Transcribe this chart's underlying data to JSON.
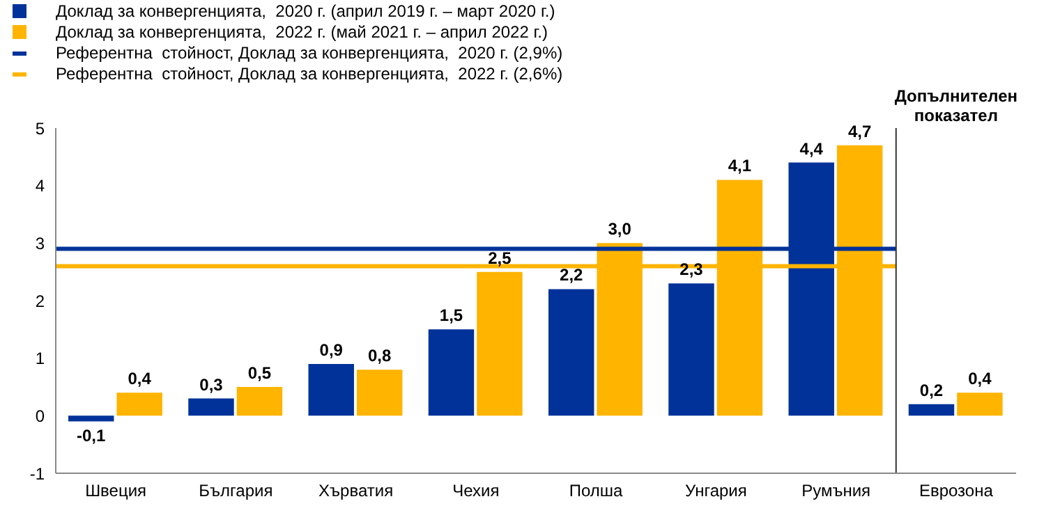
{
  "chart_data": {
    "type": "bar",
    "categories": [
      "Швеция",
      "България",
      "Хърватия",
      "Чехия",
      "Полша",
      "Унгария",
      "Румъния",
      "Еврозона"
    ],
    "series": [
      {
        "name": "Доклад за конвергенцията,  2020 г. (април 2019 г. – март 2020 г.)",
        "color": "#003299",
        "values": [
          -0.1,
          0.3,
          0.9,
          1.5,
          2.2,
          2.3,
          4.4,
          0.2
        ],
        "value_labels": [
          "-0,1",
          "0,3",
          "0,9",
          "1,5",
          "2,2",
          "2,3",
          "4,4",
          "0,2"
        ]
      },
      {
        "name": "Доклад за конвергенцията,  2022 г. (май 2021 г. – април 2022 г.)",
        "color": "#ffb400",
        "values": [
          0.4,
          0.5,
          0.8,
          2.5,
          3.0,
          4.1,
          4.7,
          0.4
        ],
        "value_labels": [
          "0,4",
          "0,5",
          "0,8",
          "2,5",
          "3,0",
          "4,1",
          "4,7",
          "0,4"
        ]
      }
    ],
    "ref_lines": [
      {
        "axis": "y",
        "value": 2.9,
        "label": "Референтна  стойност, Доклад за конвергенцията,  2020 г. (2,9%)",
        "color": "#003299"
      },
      {
        "axis": "y",
        "value": 2.6,
        "label": "Референтна  стойност, Доклад за конвергенцията,  2022 г. (2,6%)",
        "color": "#ffb400"
      }
    ],
    "annotations": [
      "Допълнителен показател"
    ],
    "ylim": [
      -1,
      5
    ],
    "yticks": [
      -1,
      0,
      1,
      2,
      3,
      4,
      5
    ],
    "grid": false,
    "legend": "top left"
  }
}
